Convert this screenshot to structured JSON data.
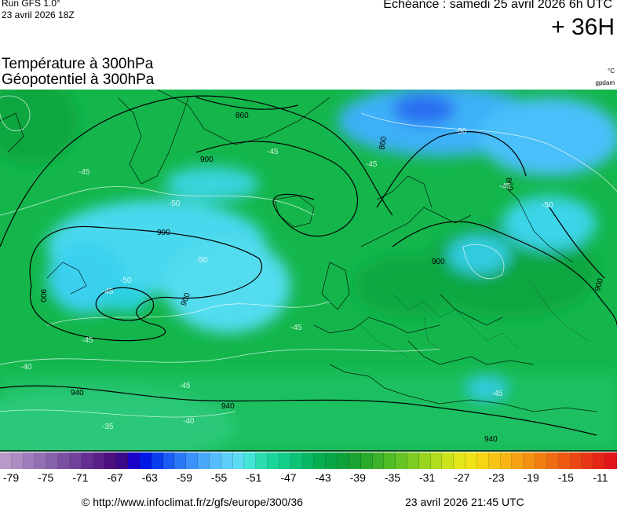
{
  "header": {
    "run_label": "Run GFS 1.0°",
    "run_date": "23 avril 2026 18Z",
    "echeance": "Echéance : samedi 25 avril 2026 6h UTC",
    "horizon": "+ 36H"
  },
  "titles": {
    "line1": "Température à 300hPa",
    "line2": "Géopotentiel à 300hPa",
    "unit_temp": "°C",
    "unit_geo": "gpdam"
  },
  "map": {
    "geopotential_labels": [
      "860",
      "900",
      "900",
      "900",
      "900",
      "860",
      "860",
      "900",
      "900",
      "940",
      "940",
      "940"
    ],
    "temperature_labels": [
      "-45",
      "-50",
      "-45",
      "-50",
      "-50",
      "-45",
      "-45",
      "-40",
      "-45",
      "-45",
      "-40",
      "-35",
      "-45",
      "-50",
      "-45",
      "-50",
      "-45"
    ]
  },
  "colorbar": {
    "tick_labels": [
      "-79",
      "-75",
      "-71",
      "-67",
      "-63",
      "-59",
      "-55",
      "-51",
      "-47",
      "-43",
      "-39",
      "-35",
      "-31",
      "-27",
      "-23",
      "-19",
      "-15",
      "-11"
    ],
    "colors": [
      "#b79ac8",
      "#ab8cc2",
      "#9e7cbb",
      "#9370b4",
      "#8760ab",
      "#7b50a3",
      "#70419b",
      "#662e92",
      "#5a1f88",
      "#4e1080",
      "#3b0a8a",
      "#1a00c8",
      "#0018e6",
      "#0a3cf0",
      "#1a5cf5",
      "#2a78f8",
      "#3c92fa",
      "#4aa8fc",
      "#55bcfd",
      "#5ccef8",
      "#5cdcf2",
      "#44e4d6",
      "#2cdcb0",
      "#1ad49a",
      "#12cc88",
      "#0cc274",
      "#08b862",
      "#06ae50",
      "#08a644",
      "#10a23a",
      "#1ca432",
      "#2aaa2c",
      "#3cb228",
      "#50bc26",
      "#66c424",
      "#7ecc22",
      "#98d420",
      "#b2dc1e",
      "#cce21c",
      "#e2e61a",
      "#f0e218",
      "#f6d416",
      "#f8c414",
      "#f8b412",
      "#f6a212",
      "#f49012",
      "#f27e12",
      "#f06c12",
      "#ee5a12",
      "#ec4814",
      "#e83616",
      "#e42618",
      "#e0161a"
    ]
  },
  "footer": {
    "credit": "© http://www.infoclimat.fr/z/gfs/europe/300/36",
    "timestamp": "23 avril 2026 21:45 UTC"
  }
}
